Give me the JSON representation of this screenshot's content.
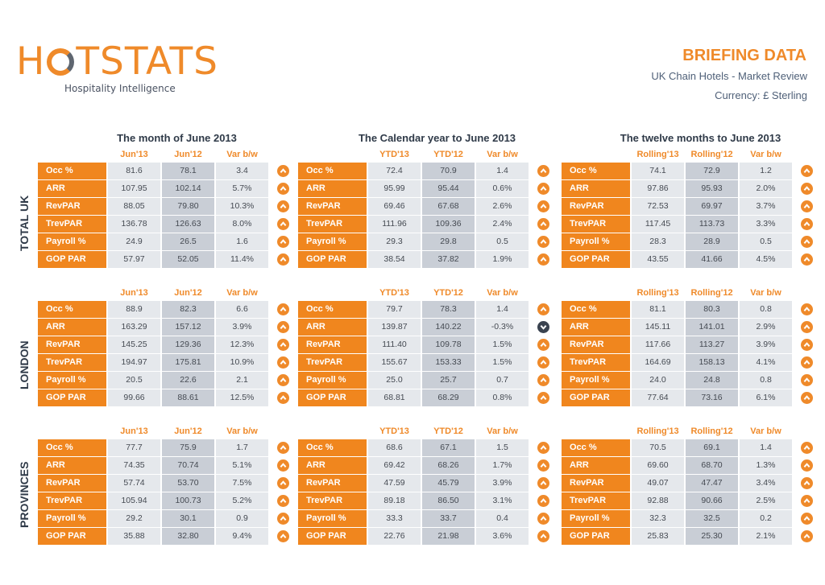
{
  "header": {
    "logo_text": "HOTSTATS",
    "tagline": "Hospitality Intelligence",
    "title": "BRIEFING DATA",
    "subtitle": "UK Chain Hotels - Market Review",
    "currency": "Currency: £ Sterling"
  },
  "colors": {
    "accent": "#f0861e",
    "up": "#ef8a2a",
    "down": "#3a4350"
  },
  "periods": [
    {
      "title": "The month of June 2013",
      "headers": [
        "Jun'13",
        "Jun'12",
        "Var b/w"
      ]
    },
    {
      "title": "The Calendar year to June 2013",
      "headers": [
        "YTD'13",
        "YTD'12",
        "Var b/w"
      ]
    },
    {
      "title": "The twelve months to June 2013",
      "headers": [
        "Rolling'13",
        "Rolling'12",
        "Var b/w"
      ]
    }
  ],
  "sections": [
    {
      "name": "TOTAL UK",
      "panels": [
        {
          "rows": [
            [
              "Occ %",
              "81.6",
              "78.1",
              "3.4",
              "up"
            ],
            [
              "ARR",
              "107.95",
              "102.14",
              "5.7%",
              "up"
            ],
            [
              "RevPAR",
              "88.05",
              "79.80",
              "10.3%",
              "up"
            ],
            [
              "TrevPAR",
              "136.78",
              "126.63",
              "8.0%",
              "up"
            ],
            [
              "Payroll %",
              "24.9",
              "26.5",
              "1.6",
              "up"
            ],
            [
              "GOP PAR",
              "57.97",
              "52.05",
              "11.4%",
              "up"
            ]
          ]
        },
        {
          "rows": [
            [
              "Occ %",
              "72.4",
              "70.9",
              "1.4",
              "up"
            ],
            [
              "ARR",
              "95.99",
              "95.44",
              "0.6%",
              "up"
            ],
            [
              "RevPAR",
              "69.46",
              "67.68",
              "2.6%",
              "up"
            ],
            [
              "TrevPAR",
              "111.96",
              "109.36",
              "2.4%",
              "up"
            ],
            [
              "Payroll %",
              "29.3",
              "29.8",
              "0.5",
              "up"
            ],
            [
              "GOP PAR",
              "38.54",
              "37.82",
              "1.9%",
              "up"
            ]
          ]
        },
        {
          "rows": [
            [
              "Occ %",
              "74.1",
              "72.9",
              "1.2",
              "up"
            ],
            [
              "ARR",
              "97.86",
              "95.93",
              "2.0%",
              "up"
            ],
            [
              "RevPAR",
              "72.53",
              "69.97",
              "3.7%",
              "up"
            ],
            [
              "TrevPAR",
              "117.45",
              "113.73",
              "3.3%",
              "up"
            ],
            [
              "Payroll %",
              "28.3",
              "28.9",
              "0.5",
              "up"
            ],
            [
              "GOP PAR",
              "43.55",
              "41.66",
              "4.5%",
              "up"
            ]
          ]
        }
      ]
    },
    {
      "name": "LONDON",
      "panels": [
        {
          "rows": [
            [
              "Occ %",
              "88.9",
              "82.3",
              "6.6",
              "up"
            ],
            [
              "ARR",
              "163.29",
              "157.12",
              "3.9%",
              "up"
            ],
            [
              "RevPAR",
              "145.25",
              "129.36",
              "12.3%",
              "up"
            ],
            [
              "TrevPAR",
              "194.97",
              "175.81",
              "10.9%",
              "up"
            ],
            [
              "Payroll %",
              "20.5",
              "22.6",
              "2.1",
              "up"
            ],
            [
              "GOP PAR",
              "99.66",
              "88.61",
              "12.5%",
              "up"
            ]
          ]
        },
        {
          "rows": [
            [
              "Occ %",
              "79.7",
              "78.3",
              "1.4",
              "up"
            ],
            [
              "ARR",
              "139.87",
              "140.22",
              "-0.3%",
              "down"
            ],
            [
              "RevPAR",
              "111.40",
              "109.78",
              "1.5%",
              "up"
            ],
            [
              "TrevPAR",
              "155.67",
              "153.33",
              "1.5%",
              "up"
            ],
            [
              "Payroll %",
              "25.0",
              "25.7",
              "0.7",
              "up"
            ],
            [
              "GOP PAR",
              "68.81",
              "68.29",
              "0.8%",
              "up"
            ]
          ]
        },
        {
          "rows": [
            [
              "Occ %",
              "81.1",
              "80.3",
              "0.8",
              "up"
            ],
            [
              "ARR",
              "145.11",
              "141.01",
              "2.9%",
              "up"
            ],
            [
              "RevPAR",
              "117.66",
              "113.27",
              "3.9%",
              "up"
            ],
            [
              "TrevPAR",
              "164.69",
              "158.13",
              "4.1%",
              "up"
            ],
            [
              "Payroll %",
              "24.0",
              "24.8",
              "0.8",
              "up"
            ],
            [
              "GOP PAR",
              "77.64",
              "73.16",
              "6.1%",
              "up"
            ]
          ]
        }
      ]
    },
    {
      "name": "PROVINCES",
      "panels": [
        {
          "rows": [
            [
              "Occ %",
              "77.7",
              "75.9",
              "1.7",
              "up"
            ],
            [
              "ARR",
              "74.35",
              "70.74",
              "5.1%",
              "up"
            ],
            [
              "RevPAR",
              "57.74",
              "53.70",
              "7.5%",
              "up"
            ],
            [
              "TrevPAR",
              "105.94",
              "100.73",
              "5.2%",
              "up"
            ],
            [
              "Payroll %",
              "29.2",
              "30.1",
              "0.9",
              "up"
            ],
            [
              "GOP PAR",
              "35.88",
              "32.80",
              "9.4%",
              "up"
            ]
          ]
        },
        {
          "rows": [
            [
              "Occ %",
              "68.6",
              "67.1",
              "1.5",
              "up"
            ],
            [
              "ARR",
              "69.42",
              "68.26",
              "1.7%",
              "up"
            ],
            [
              "RevPAR",
              "47.59",
              "45.79",
              "3.9%",
              "up"
            ],
            [
              "TrevPAR",
              "89.18",
              "86.50",
              "3.1%",
              "up"
            ],
            [
              "Payroll %",
              "33.3",
              "33.7",
              "0.4",
              "up"
            ],
            [
              "GOP PAR",
              "22.76",
              "21.98",
              "3.6%",
              "up"
            ]
          ]
        },
        {
          "rows": [
            [
              "Occ %",
              "70.5",
              "69.1",
              "1.4",
              "up"
            ],
            [
              "ARR",
              "69.60",
              "68.70",
              "1.3%",
              "up"
            ],
            [
              "RevPAR",
              "49.07",
              "47.47",
              "3.4%",
              "up"
            ],
            [
              "TrevPAR",
              "92.88",
              "90.66",
              "2.5%",
              "up"
            ],
            [
              "Payroll %",
              "32.3",
              "32.5",
              "0.2",
              "up"
            ],
            [
              "GOP PAR",
              "25.83",
              "25.30",
              "2.1%",
              "up"
            ]
          ]
        }
      ]
    }
  ]
}
